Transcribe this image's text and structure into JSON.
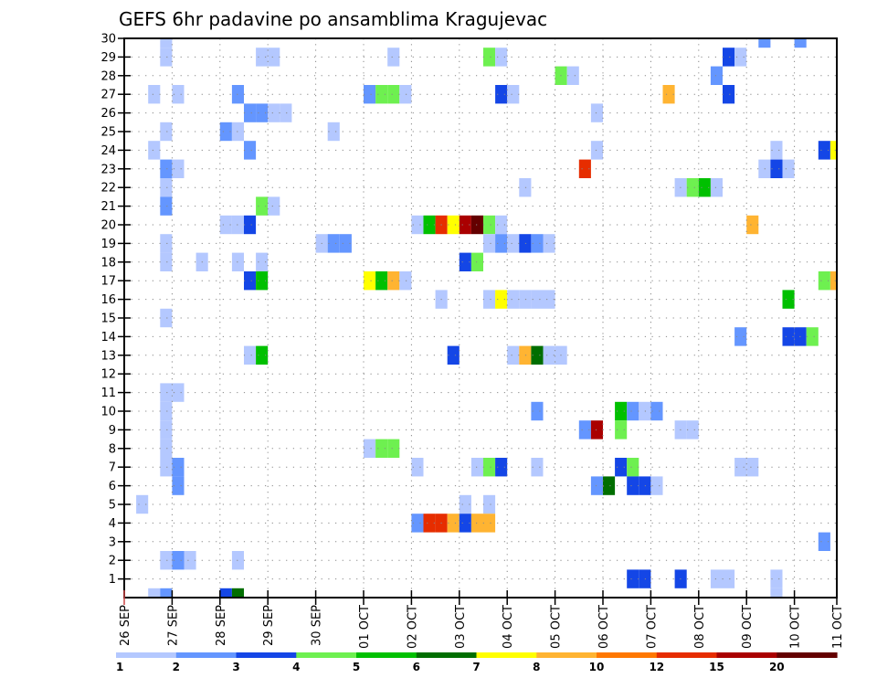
{
  "chart_data": {
    "type": "heatmap",
    "title": "GEFS 6hr padavine po ansamblima Kragujevac",
    "xlabel": "",
    "ylabel": "",
    "x_tick_labels": [
      "26 SEP",
      "27 SEP",
      "28 SEP",
      "29 SEP",
      "30 SEP",
      "01 OCT",
      "02 OCT",
      "03 OCT",
      "04 OCT",
      "05 OCT",
      "06 OCT",
      "07 OCT",
      "08 OCT",
      "09 OCT",
      "10 OCT",
      "11 OCT"
    ],
    "x_step_hours": 6,
    "x_range_steps": [
      0,
      59.5
    ],
    "y_tick_labels": [
      "1",
      "2",
      "3",
      "4",
      "5",
      "6",
      "7",
      "8",
      "9",
      "10",
      "11",
      "12",
      "13",
      "14",
      "15",
      "16",
      "17",
      "18",
      "19",
      "20",
      "21",
      "22",
      "23",
      "24",
      "25",
      "26",
      "27",
      "28",
      "29",
      "30"
    ],
    "y_range": [
      0,
      30
    ],
    "grid": true,
    "colorbar": {
      "position": "bottom",
      "tick_labels": [
        "1",
        "2",
        "3",
        "4",
        "5",
        "6",
        "7",
        "8",
        "10",
        "12",
        "15",
        "20"
      ],
      "colors": [
        "#b4c8ff",
        "#6496ff",
        "#1446e6",
        "#6ef050",
        "#00c000",
        "#006e00",
        "#ffff00",
        "#ffb432",
        "#ff7800",
        "#e62d00",
        "#aa0000",
        "#640000"
      ]
    },
    "cell_fields": [
      "member",
      "step_6h",
      "class"
    ],
    "cells": [
      [
        30,
        3,
        0
      ],
      [
        30,
        53,
        1
      ],
      [
        30,
        56,
        1
      ],
      [
        29,
        3,
        0
      ],
      [
        29,
        11,
        0
      ],
      [
        29,
        12,
        0
      ],
      [
        29,
        22,
        0
      ],
      [
        29,
        30,
        3
      ],
      [
        29,
        31,
        0
      ],
      [
        29,
        50,
        2
      ],
      [
        29,
        51,
        0
      ],
      [
        28,
        36,
        3
      ],
      [
        28,
        37,
        0
      ],
      [
        28,
        49,
        1
      ],
      [
        27,
        2,
        0
      ],
      [
        27,
        4,
        0
      ],
      [
        27,
        9,
        1
      ],
      [
        27,
        20,
        1
      ],
      [
        27,
        21,
        3
      ],
      [
        27,
        22,
        3
      ],
      [
        27,
        23,
        0
      ],
      [
        27,
        31,
        2
      ],
      [
        27,
        32,
        0
      ],
      [
        27,
        45,
        7
      ],
      [
        27,
        50,
        2
      ],
      [
        26,
        10,
        1
      ],
      [
        26,
        11,
        1
      ],
      [
        26,
        12,
        0
      ],
      [
        26,
        13,
        0
      ],
      [
        26,
        39,
        0
      ],
      [
        25,
        3,
        0
      ],
      [
        25,
        8,
        1
      ],
      [
        25,
        9,
        0
      ],
      [
        25,
        17,
        0
      ],
      [
        24,
        2,
        0
      ],
      [
        24,
        10,
        1
      ],
      [
        24,
        39,
        0
      ],
      [
        24,
        54,
        0
      ],
      [
        24,
        58,
        2
      ],
      [
        24,
        59,
        6
      ],
      [
        23,
        3,
        1
      ],
      [
        23,
        4,
        0
      ],
      [
        23,
        38,
        9
      ],
      [
        23,
        53,
        0
      ],
      [
        23,
        54,
        2
      ],
      [
        23,
        55,
        0
      ],
      [
        22,
        3,
        0
      ],
      [
        22,
        33,
        0
      ],
      [
        22,
        46,
        0
      ],
      [
        22,
        47,
        3
      ],
      [
        22,
        48,
        4
      ],
      [
        22,
        49,
        0
      ],
      [
        21,
        3,
        1
      ],
      [
        21,
        11,
        3
      ],
      [
        21,
        12,
        0
      ],
      [
        20,
        8,
        0
      ],
      [
        20,
        9,
        0
      ],
      [
        20,
        10,
        2
      ],
      [
        20,
        24,
        0
      ],
      [
        20,
        25,
        4
      ],
      [
        20,
        26,
        9
      ],
      [
        20,
        27,
        6
      ],
      [
        20,
        28,
        10
      ],
      [
        20,
        29,
        11
      ],
      [
        20,
        30,
        3
      ],
      [
        20,
        31,
        0
      ],
      [
        20,
        52,
        7
      ],
      [
        19,
        3,
        0
      ],
      [
        19,
        16,
        0
      ],
      [
        19,
        17,
        1
      ],
      [
        19,
        18,
        1
      ],
      [
        19,
        30,
        0
      ],
      [
        19,
        31,
        1
      ],
      [
        19,
        32,
        0
      ],
      [
        19,
        33,
        2
      ],
      [
        19,
        34,
        1
      ],
      [
        19,
        35,
        0
      ],
      [
        18,
        3,
        0
      ],
      [
        18,
        6,
        0
      ],
      [
        18,
        9,
        0
      ],
      [
        18,
        11,
        0
      ],
      [
        18,
        28,
        2
      ],
      [
        18,
        29,
        3
      ],
      [
        17,
        10,
        2
      ],
      [
        17,
        11,
        4
      ],
      [
        17,
        20,
        6
      ],
      [
        17,
        21,
        4
      ],
      [
        17,
        22,
        7
      ],
      [
        17,
        23,
        0
      ],
      [
        17,
        58,
        3
      ],
      [
        17,
        59,
        7
      ],
      [
        16,
        26,
        0
      ],
      [
        16,
        30,
        0
      ],
      [
        16,
        31,
        6
      ],
      [
        16,
        32,
        0
      ],
      [
        16,
        33,
        0
      ],
      [
        16,
        34,
        0
      ],
      [
        16,
        35,
        0
      ],
      [
        16,
        55,
        4
      ],
      [
        15,
        3,
        0
      ],
      [
        14,
        51,
        1
      ],
      [
        14,
        55,
        2
      ],
      [
        14,
        56,
        2
      ],
      [
        14,
        57,
        3
      ],
      [
        13,
        10,
        0
      ],
      [
        13,
        11,
        4
      ],
      [
        13,
        27,
        2
      ],
      [
        13,
        32,
        0
      ],
      [
        13,
        33,
        7
      ],
      [
        13,
        34,
        5
      ],
      [
        13,
        35,
        0
      ],
      [
        13,
        36,
        0
      ],
      [
        11,
        3,
        0
      ],
      [
        11,
        4,
        0
      ],
      [
        10,
        3,
        0
      ],
      [
        10,
        34,
        1
      ],
      [
        10,
        41,
        4
      ],
      [
        10,
        42,
        1
      ],
      [
        10,
        43,
        0
      ],
      [
        10,
        44,
        1
      ],
      [
        9,
        3,
        0
      ],
      [
        9,
        38,
        1
      ],
      [
        9,
        39,
        10
      ],
      [
        9,
        41,
        3
      ],
      [
        9,
        46,
        0
      ],
      [
        9,
        47,
        0
      ],
      [
        8,
        3,
        0
      ],
      [
        8,
        20,
        0
      ],
      [
        8,
        21,
        3
      ],
      [
        8,
        22,
        3
      ],
      [
        7,
        3,
        0
      ],
      [
        7,
        4,
        1
      ],
      [
        7,
        24,
        0
      ],
      [
        7,
        29,
        0
      ],
      [
        7,
        30,
        3
      ],
      [
        7,
        31,
        2
      ],
      [
        7,
        34,
        0
      ],
      [
        7,
        41,
        2
      ],
      [
        7,
        42,
        3
      ],
      [
        7,
        51,
        0
      ],
      [
        7,
        52,
        0
      ],
      [
        6,
        4,
        1
      ],
      [
        6,
        39,
        1
      ],
      [
        6,
        40,
        5
      ],
      [
        6,
        42,
        2
      ],
      [
        6,
        43,
        2
      ],
      [
        6,
        44,
        0
      ],
      [
        5,
        1,
        0
      ],
      [
        5,
        28,
        0
      ],
      [
        5,
        30,
        0
      ],
      [
        4,
        24,
        1
      ],
      [
        4,
        25,
        9
      ],
      [
        4,
        26,
        9
      ],
      [
        4,
        27,
        7
      ],
      [
        4,
        28,
        2
      ],
      [
        4,
        29,
        7
      ],
      [
        4,
        30,
        7
      ],
      [
        3,
        58,
        1
      ],
      [
        2,
        3,
        0
      ],
      [
        2,
        4,
        1
      ],
      [
        2,
        5,
        0
      ],
      [
        2,
        9,
        0
      ],
      [
        1,
        42,
        2
      ],
      [
        1,
        43,
        2
      ],
      [
        1,
        46,
        2
      ],
      [
        1,
        49,
        0
      ],
      [
        1,
        50,
        0
      ],
      [
        1,
        54,
        0
      ],
      [
        0,
        2,
        0
      ],
      [
        0,
        3,
        1
      ],
      [
        0,
        8,
        2
      ],
      [
        0,
        9,
        5
      ],
      [
        0,
        54,
        0
      ]
    ]
  }
}
